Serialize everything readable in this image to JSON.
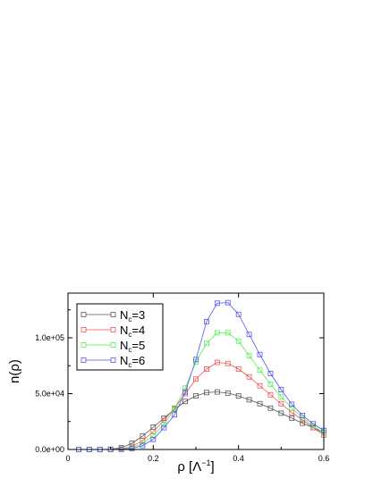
{
  "chart_data": {
    "type": "line",
    "title": "",
    "xlabel": {
      "main": "ρ [Λ",
      "sup": "−1",
      "end": "]"
    },
    "ylabel": "n(ρ)",
    "xlim": [
      0,
      0.6
    ],
    "ylim": [
      0,
      140000
    ],
    "xticks": [
      0,
      0.2,
      0.4,
      0.6
    ],
    "xtick_labels": [
      "0",
      "0.2",
      "0.4",
      "0.6"
    ],
    "yticks": [
      0,
      50000,
      100000
    ],
    "ytick_labels": [
      "0.0e+00",
      "5.0e+04",
      "1.0e+05"
    ],
    "grid": false,
    "legend_position": "top-left",
    "x": [
      0.025,
      0.05,
      0.075,
      0.1,
      0.125,
      0.15,
      0.175,
      0.2,
      0.225,
      0.25,
      0.275,
      0.3,
      0.325,
      0.35,
      0.375,
      0.4,
      0.425,
      0.45,
      0.475,
      0.5,
      0.525,
      0.55,
      0.575,
      0.6
    ],
    "series": [
      {
        "name_main": "N",
        "name_sub": "c",
        "name_end": "=3",
        "color": "#555555",
        "values": [
          0,
          0,
          0,
          200,
          1500,
          5500,
          12000,
          20000,
          28000,
          36000,
          43000,
          48000,
          51000,
          51500,
          50500,
          48000,
          44500,
          41000,
          37000,
          32500,
          28000,
          23500,
          19500,
          15000
        ]
      },
      {
        "name_main": "N",
        "name_sub": "c",
        "name_end": "=4",
        "color": "#ee5555",
        "values": [
          0,
          0,
          0,
          50,
          500,
          2500,
          8000,
          16000,
          26000,
          37000,
          50000,
          63000,
          72000,
          78000,
          77000,
          72000,
          65000,
          57000,
          49000,
          41000,
          33000,
          26500,
          19500,
          13000
        ]
      },
      {
        "name_main": "N",
        "name_sub": "c",
        "name_end": "=5",
        "color": "#55ee55",
        "values": [
          0,
          0,
          0,
          0,
          200,
          1500,
          5000,
          12500,
          22500,
          36500,
          55000,
          78500,
          95000,
          104500,
          104500,
          97000,
          84000,
          71000,
          58500,
          47000,
          37000,
          28500,
          21000,
          15000
        ]
      },
      {
        "name_main": "N",
        "name_sub": "c",
        "name_end": "=6",
        "color": "#5555ee",
        "values": [
          0,
          0,
          0,
          0,
          100,
          800,
          3500,
          9000,
          19500,
          31000,
          51500,
          80500,
          114500,
          131000,
          131500,
          121000,
          103000,
          85000,
          68000,
          53500,
          40500,
          30500,
          23000,
          17000
        ]
      }
    ]
  }
}
